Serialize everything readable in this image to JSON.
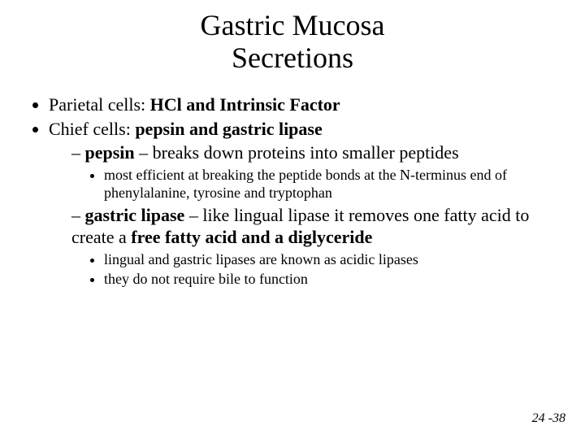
{
  "title": {
    "line1": "Gastric Mucosa",
    "line2": "Secretions",
    "fontsize": 36,
    "align": "center"
  },
  "bullets": {
    "l1": [
      {
        "prefix": "Parietal cells: ",
        "bold": "HCl and Intrinsic Factor"
      },
      {
        "prefix": "Chief cells: ",
        "bold": "pepsin and gastric lipase"
      }
    ],
    "l2": [
      {
        "bold": "pepsin",
        "rest": " – breaks down proteins into smaller peptides"
      },
      {
        "bold": "gastric lipase",
        "rest": " – like lingual lipase it removes one fatty acid to create a ",
        "bold2": "free fatty acid and a diglyceride"
      }
    ],
    "l3a": [
      "most efficient at breaking the peptide bonds at the N-terminus end of phenylalanine, tyrosine and tryptophan"
    ],
    "l3b": [
      "lingual and gastric lipases are known as acidic lipases",
      "they do not require bile to function"
    ]
  },
  "footer": "24 -38",
  "colors": {
    "text": "#000000",
    "background": "#ffffff"
  },
  "typography": {
    "body_fontsize": 22,
    "sub_fontsize": 18,
    "title_fontsize": 36,
    "family": "Times New Roman"
  }
}
